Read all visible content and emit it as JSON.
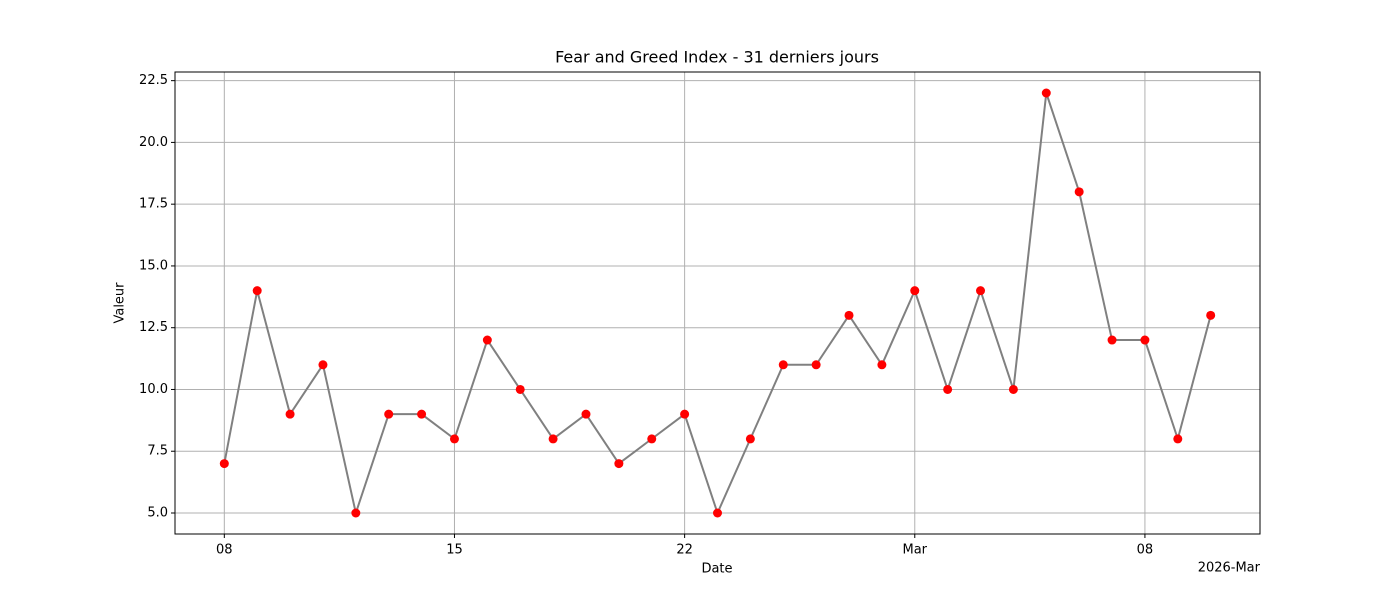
{
  "chart_data": {
    "type": "line",
    "title": "Fear and Greed Index - 31 derniers jours",
    "x_label": "Date",
    "y_label": "Valeur",
    "x_offset_label": "2026-Mar",
    "x": [
      "2026-02-08",
      "2026-02-09",
      "2026-02-10",
      "2026-02-11",
      "2026-02-12",
      "2026-02-13",
      "2026-02-14",
      "2026-02-15",
      "2026-02-16",
      "2026-02-17",
      "2026-02-18",
      "2026-02-19",
      "2026-02-20",
      "2026-02-21",
      "2026-02-22",
      "2026-02-23",
      "2026-02-24",
      "2026-02-25",
      "2026-02-26",
      "2026-02-27",
      "2026-02-28",
      "2026-03-01",
      "2026-03-02",
      "2026-03-03",
      "2026-03-04",
      "2026-03-05",
      "2026-03-06",
      "2026-03-07",
      "2026-03-08",
      "2026-03-09",
      "2026-03-10"
    ],
    "values": [
      7,
      14,
      9,
      11,
      5,
      9,
      9,
      8,
      12,
      10,
      8,
      9,
      7,
      8,
      9,
      5,
      8,
      11,
      11,
      13,
      11,
      14,
      10,
      14,
      10,
      22,
      18,
      12,
      12,
      8,
      13
    ],
    "line_color": "#808080",
    "marker_color": "#ff0000",
    "xlim": [
      "2026-02-06T12:00Z",
      "2026-03-11T12:00Z"
    ],
    "xticks": [
      {
        "value": "2026-02-08",
        "label": "08"
      },
      {
        "value": "2026-02-15",
        "label": "15"
      },
      {
        "value": "2026-02-22",
        "label": "22"
      },
      {
        "value": "2026-03-01",
        "label": "Mar"
      },
      {
        "value": "2026-03-08",
        "label": "08"
      }
    ],
    "ylim": [
      4.15,
      22.85
    ],
    "yticks": [
      {
        "value": 5,
        "label": "5.0"
      },
      {
        "value": 7.5,
        "label": "7.5"
      },
      {
        "value": 10,
        "label": "10.0"
      },
      {
        "value": 12.5,
        "label": "12.5"
      },
      {
        "value": 15,
        "label": "15.0"
      },
      {
        "value": 17.5,
        "label": "17.5"
      },
      {
        "value": 20,
        "label": "20.0"
      },
      {
        "value": 22.5,
        "label": "22.5"
      }
    ],
    "grid": true
  }
}
